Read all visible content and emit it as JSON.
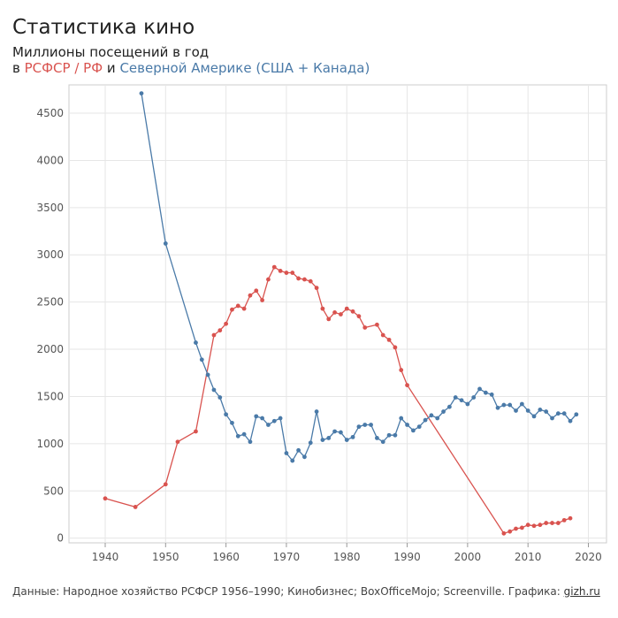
{
  "title": "Статистика кино",
  "subtitle": "Миллионы посещений в год",
  "subtitle2": {
    "prefix": "в",
    "series_a": "РСФСР / РФ",
    "conj": "и",
    "series_b": "Северной Америке (США + Канада)"
  },
  "footer": {
    "text": "Данные: Народное хозяйство РСФСР 1956–1990; Кинобизнес; BoxOfficeMojo; Screenville. Графика:",
    "link": "gizh.ru"
  },
  "colors": {
    "rsfsr": "#d9534f",
    "na": "#4a7aa8",
    "grid": "#e6e6e6",
    "frame": "#cccccc"
  },
  "chart_data": {
    "type": "line",
    "xlim": [
      1934,
      2023
    ],
    "ylim": [
      -50,
      4800
    ],
    "xticks": [
      1940,
      1950,
      1960,
      1970,
      1980,
      1990,
      2000,
      2010,
      2020
    ],
    "yticks": [
      0,
      500,
      1000,
      1500,
      2000,
      2500,
      3000,
      3500,
      4000,
      4500
    ],
    "grid": true,
    "series": [
      {
        "key": "rsfsr",
        "name": "РСФСР / РФ",
        "x": [
          1940,
          1945,
          1950,
          1952,
          1955,
          1958,
          1959,
          1960,
          1961,
          1962,
          1963,
          1964,
          1965,
          1966,
          1967,
          1968,
          1969,
          1970,
          1971,
          1972,
          1973,
          1974,
          1975,
          1976,
          1977,
          1978,
          1979,
          1980,
          1981,
          1982,
          1983,
          1985,
          1986,
          1987,
          1988,
          1989,
          1990,
          2006,
          2007,
          2008,
          2009,
          2010,
          2011,
          2012,
          2013,
          2014,
          2015,
          2016,
          2017
        ],
        "values": [
          420,
          330,
          570,
          1020,
          1130,
          2150,
          2200,
          2270,
          2420,
          2460,
          2430,
          2570,
          2620,
          2520,
          2740,
          2870,
          2830,
          2810,
          2810,
          2750,
          2740,
          2720,
          2650,
          2430,
          2320,
          2390,
          2370,
          2430,
          2400,
          2350,
          2230,
          2260,
          2150,
          2100,
          2020,
          1780,
          1620,
          50,
          70,
          100,
          110,
          140,
          130,
          140,
          160,
          160,
          160,
          190,
          210
        ]
      },
      {
        "key": "na",
        "name": "Северной Америке (США + Канада)",
        "x": [
          1946,
          1950,
          1955,
          1956,
          1957,
          1958,
          1959,
          1960,
          1961,
          1962,
          1963,
          1964,
          1965,
          1966,
          1967,
          1968,
          1969,
          1970,
          1971,
          1972,
          1973,
          1974,
          1975,
          1976,
          1977,
          1978,
          1979,
          1980,
          1981,
          1982,
          1983,
          1984,
          1985,
          1986,
          1987,
          1988,
          1989,
          1990,
          1991,
          1992,
          1993,
          1994,
          1995,
          1996,
          1997,
          1998,
          1999,
          2000,
          2001,
          2002,
          2003,
          2004,
          2005,
          2006,
          2007,
          2008,
          2009,
          2010,
          2011,
          2012,
          2013,
          2014,
          2015,
          2016,
          2017,
          2018
        ],
        "values": [
          4710,
          3120,
          2070,
          1890,
          1730,
          1570,
          1490,
          1310,
          1220,
          1080,
          1100,
          1020,
          1290,
          1270,
          1200,
          1240,
          1270,
          900,
          820,
          930,
          860,
          1010,
          1340,
          1040,
          1060,
          1130,
          1120,
          1040,
          1070,
          1180,
          1200,
          1200,
          1060,
          1020,
          1090,
          1090,
          1270,
          1200,
          1140,
          1180,
          1250,
          1300,
          1270,
          1340,
          1390,
          1490,
          1460,
          1420,
          1490,
          1580,
          1540,
          1520,
          1380,
          1410,
          1410,
          1350,
          1420,
          1350,
          1290,
          1360,
          1340,
          1270,
          1320,
          1320,
          1240,
          1310
        ]
      }
    ]
  }
}
